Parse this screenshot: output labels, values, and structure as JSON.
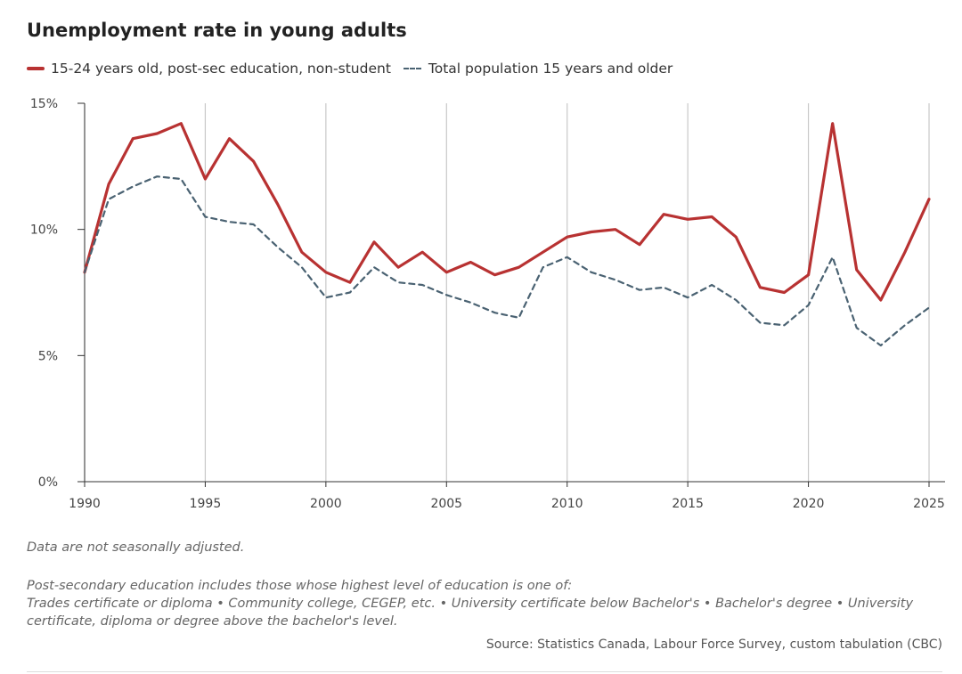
{
  "title": "Unemployment rate in young adults",
  "colors": {
    "series1": "#b83232",
    "series2": "#4a6272",
    "grid": "#c8c8c8",
    "axis": "#333333"
  },
  "chart_data": {
    "type": "line",
    "title": "Unemployment rate in young adults",
    "xlabel": "",
    "ylabel": "",
    "xlim": [
      1990,
      2025
    ],
    "ylim": [
      0,
      15
    ],
    "x_ticks": [
      1990,
      1995,
      2000,
      2005,
      2010,
      2015,
      2020,
      2025
    ],
    "x_tick_labels": [
      "1990",
      "1995",
      "2000",
      "2005",
      "2010",
      "2015",
      "2020",
      "2025"
    ],
    "y_ticks": [
      0,
      5,
      10,
      15
    ],
    "y_tick_labels": [
      "0%",
      "5%",
      "10%",
      "15%"
    ],
    "grid": "vertical",
    "legend_position": "top-left",
    "x": [
      1990,
      1991,
      1992,
      1993,
      1994,
      1995,
      1996,
      1997,
      1998,
      1999,
      2000,
      2001,
      2002,
      2003,
      2004,
      2005,
      2006,
      2007,
      2008,
      2009,
      2010,
      2011,
      2012,
      2013,
      2014,
      2015,
      2016,
      2017,
      2018,
      2019,
      2020,
      2021,
      2022,
      2023,
      2024,
      2025
    ],
    "series": [
      {
        "name": "15-24 years old, post-sec education, non-student",
        "style": "solid",
        "values": [
          8.3,
          11.8,
          13.6,
          13.8,
          14.2,
          12.0,
          13.6,
          12.7,
          11.0,
          9.1,
          8.3,
          7.9,
          9.5,
          8.5,
          9.1,
          8.3,
          8.7,
          8.2,
          8.5,
          9.1,
          9.7,
          9.9,
          10.0,
          9.4,
          10.6,
          10.4,
          10.5,
          9.7,
          7.7,
          7.5,
          8.2,
          14.2,
          8.4,
          7.2,
          9.1,
          11.2
        ]
      },
      {
        "name": "Total population 15 years and older",
        "style": "dashed",
        "values": [
          8.3,
          11.2,
          11.7,
          12.1,
          12.0,
          10.5,
          10.3,
          10.2,
          9.3,
          8.5,
          7.3,
          7.5,
          8.5,
          7.9,
          7.8,
          7.4,
          7.1,
          6.7,
          6.5,
          8.5,
          8.9,
          8.3,
          8.0,
          7.6,
          7.7,
          7.3,
          7.8,
          7.2,
          6.3,
          6.2,
          7.0,
          8.9,
          6.1,
          5.4,
          6.2,
          6.9
        ]
      }
    ]
  },
  "notes": {
    "seasonal": "Data are not seasonally adjusted.",
    "definition_line1": "Post-secondary education includes those whose highest level of education is one of:",
    "definition_line2": "Trades certificate or diploma • Community college, CEGEP, etc. • University certificate below Bachelor's • Bachelor's degree • University",
    "definition_line3": "certificate, diploma or degree above the bachelor's level."
  },
  "source": "Source: Statistics Canada, Labour Force Survey, custom tabulation (CBC)"
}
